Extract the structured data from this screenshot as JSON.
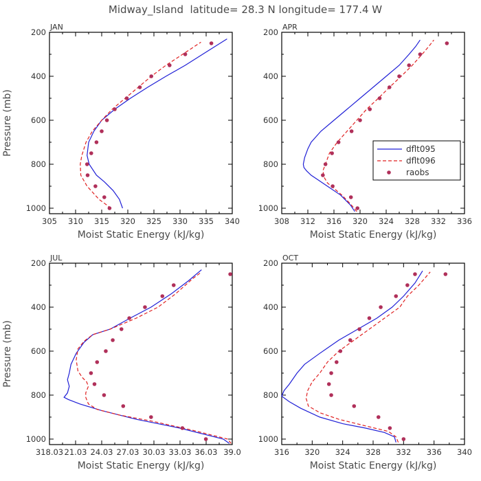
{
  "title": "Midway_Island  latitude= 28.3 N longitude= 177.4 W",
  "colors": {
    "dflt095": "#1f1fd6",
    "dflt096": "#e02020",
    "raobs": "#b0305a",
    "axis": "#000000"
  },
  "legend": [
    "dflt095",
    "dflt096",
    "raobs"
  ],
  "chart_data": [
    {
      "type": "line",
      "title": "JAN",
      "xlabel": "Moist Static Energy (kJ/kg)",
      "ylabel": "Pressure (mb)",
      "xlim": [
        305,
        340
      ],
      "ylim": [
        1025,
        200
      ],
      "xticks": [
        "305",
        "310",
        "315",
        "320",
        "325",
        "330",
        "335",
        "340"
      ],
      "xtickvals": [
        305,
        310,
        315,
        320,
        325,
        330,
        335,
        340
      ],
      "yticks": [
        200,
        400,
        600,
        800,
        1000
      ],
      "series": [
        {
          "name": "dflt095",
          "style": "solid",
          "points": [
            [
              319,
              1000
            ],
            [
              318.4,
              960
            ],
            [
              317.2,
              920
            ],
            [
              315.5,
              880
            ],
            [
              314,
              850
            ],
            [
              312.6,
              800
            ],
            [
              312.2,
              760
            ],
            [
              312.5,
              700
            ],
            [
              313.5,
              650
            ],
            [
              315,
              600
            ],
            [
              317.5,
              550
            ],
            [
              320.5,
              500
            ],
            [
              323.8,
              450
            ],
            [
              327.3,
              400
            ],
            [
              331,
              350
            ],
            [
              335,
              290
            ],
            [
              339,
              230
            ]
          ]
        },
        {
          "name": "dflt096",
          "style": "dashed",
          "points": [
            [
              316.8,
              1000
            ],
            [
              314.5,
              960
            ],
            [
              312.2,
              900
            ],
            [
              311,
              850
            ],
            [
              310.9,
              800
            ],
            [
              311.2,
              760
            ],
            [
              312,
              700
            ],
            [
              313.2,
              650
            ],
            [
              315,
              600
            ],
            [
              317,
              550
            ],
            [
              319.5,
              500
            ],
            [
              322,
              450
            ],
            [
              324.5,
              400
            ],
            [
              327.3,
              350
            ],
            [
              330.5,
              300
            ],
            [
              334,
              245
            ]
          ]
        },
        {
          "name": "raobs",
          "style": "dots",
          "points": [
            [
              316.5,
              1000
            ],
            [
              315.5,
              950
            ],
            [
              313.8,
              900
            ],
            [
              312.3,
              850
            ],
            [
              312.2,
              800
            ],
            [
              313,
              750
            ],
            [
              314,
              700
            ],
            [
              315,
              650
            ],
            [
              316,
              600
            ],
            [
              317.5,
              550
            ],
            [
              319.8,
              500
            ],
            [
              322.3,
              450
            ],
            [
              324.5,
              400
            ],
            [
              328,
              350
            ],
            [
              331,
              300
            ],
            [
              336,
              250
            ]
          ]
        }
      ]
    },
    {
      "type": "line",
      "title": "APR",
      "xlabel": "Moist Static Energy (kJ/kg)",
      "ylabel": "",
      "xlim": [
        308,
        336
      ],
      "ylim": [
        1025,
        200
      ],
      "xticks": [
        "308",
        "312",
        "316",
        "320",
        "324",
        "328",
        "332",
        "336"
      ],
      "xtickvals": [
        308,
        312,
        316,
        320,
        324,
        328,
        332,
        336
      ],
      "yticks": [
        200,
        400,
        600,
        800,
        1000
      ],
      "series": [
        {
          "name": "dflt095",
          "style": "solid",
          "points": [
            [
              319.2,
              1015
            ],
            [
              318.5,
              985
            ],
            [
              317,
              940
            ],
            [
              315,
              900
            ],
            [
              313.5,
              870
            ],
            [
              312.5,
              850
            ],
            [
              311.8,
              830
            ],
            [
              311.4,
              815
            ],
            [
              311.3,
              800
            ],
            [
              311.5,
              770
            ],
            [
              312,
              730
            ],
            [
              312.5,
              700
            ],
            [
              314,
              650
            ],
            [
              316,
              600
            ],
            [
              318,
              550
            ],
            [
              320,
              500
            ],
            [
              322,
              450
            ],
            [
              324,
              400
            ],
            [
              326,
              350
            ],
            [
              327.5,
              300
            ],
            [
              328.5,
              265
            ],
            [
              329.2,
              235
            ]
          ]
        },
        {
          "name": "dflt096",
          "style": "dashed",
          "points": [
            [
              319.5,
              1015
            ],
            [
              318.5,
              980
            ],
            [
              317.2,
              940
            ],
            [
              316,
              910
            ],
            [
              315,
              885
            ],
            [
              314.5,
              860
            ],
            [
              314.3,
              830
            ],
            [
              314.7,
              800
            ],
            [
              315.3,
              750
            ],
            [
              316.5,
              700
            ],
            [
              318,
              650
            ],
            [
              319.5,
              600
            ],
            [
              321,
              550
            ],
            [
              322.8,
              500
            ],
            [
              324.5,
              450
            ],
            [
              326.3,
              400
            ],
            [
              328,
              350
            ],
            [
              329.5,
              300
            ],
            [
              330.5,
              265
            ],
            [
              331.3,
              235
            ]
          ]
        },
        {
          "name": "raobs",
          "style": "dots",
          "points": [
            [
              319.6,
              1000
            ],
            [
              318.6,
              950
            ],
            [
              315.8,
              900
            ],
            [
              314.3,
              850
            ],
            [
              314.7,
              800
            ],
            [
              315.7,
              750
            ],
            [
              316.7,
              700
            ],
            [
              318.7,
              650
            ],
            [
              320,
              600
            ],
            [
              321.5,
              550
            ],
            [
              323,
              500
            ],
            [
              324.5,
              450
            ],
            [
              326,
              400
            ],
            [
              327.5,
              350
            ],
            [
              329.2,
              300
            ],
            [
              333.3,
              250
            ]
          ]
        }
      ]
    },
    {
      "type": "line",
      "title": "JUL",
      "xlabel": "Moist Static Energy (kJ/kg)",
      "ylabel": "Pressure (mb)",
      "xlim": [
        318.03,
        339.03
      ],
      "ylim": [
        1025,
        200
      ],
      "xticks": [
        "318.03",
        "21.03",
        "24.03",
        "27.03",
        "30.03",
        "33.03",
        "36.03",
        "39.0"
      ],
      "xtickvals": [
        318.03,
        321.03,
        324.03,
        327.03,
        330.03,
        333.03,
        336.03,
        339.03
      ],
      "yticks": [
        200,
        400,
        600,
        800,
        1000
      ],
      "series": [
        {
          "name": "dflt095",
          "style": "solid",
          "points": [
            [
              338.7,
              1020
            ],
            [
              338,
              1000
            ],
            [
              333,
              950
            ],
            [
              328,
              910
            ],
            [
              324,
              870
            ],
            [
              321.5,
              840
            ],
            [
              320.2,
              820
            ],
            [
              319.7,
              810
            ],
            [
              320.1,
              790
            ],
            [
              320.3,
              760
            ],
            [
              320.1,
              730
            ],
            [
              320.3,
              700
            ],
            [
              320.5,
              660
            ],
            [
              321.1,
              610
            ],
            [
              322,
              560
            ],
            [
              323,
              525
            ],
            [
              325,
              500
            ],
            [
              327.3,
              450
            ],
            [
              329.7,
              400
            ],
            [
              332,
              340
            ],
            [
              334,
              280
            ],
            [
              335.5,
              230
            ]
          ]
        },
        {
          "name": "dflt096",
          "style": "dashed",
          "points": [
            [
              338.9,
              1020
            ],
            [
              338.5,
              1000
            ],
            [
              334.5,
              960
            ],
            [
              330,
              920
            ],
            [
              326,
              890
            ],
            [
              323.5,
              865
            ],
            [
              322.5,
              840
            ],
            [
              322.2,
              810
            ],
            [
              322.2,
              790
            ],
            [
              322.5,
              760
            ],
            [
              322.3,
              740
            ],
            [
              321.8,
              720
            ],
            [
              321.3,
              690
            ],
            [
              321.1,
              640
            ],
            [
              321.3,
              590
            ],
            [
              322,
              555
            ],
            [
              323,
              525
            ],
            [
              325,
              500
            ],
            [
              328,
              450
            ],
            [
              330.5,
              400
            ],
            [
              332.5,
              340
            ],
            [
              334.5,
              270
            ],
            [
              335.5,
              240
            ]
          ]
        },
        {
          "name": "raobs",
          "style": "dots",
          "points": [
            [
              336,
              1000
            ],
            [
              333.3,
              950
            ],
            [
              329.7,
              900
            ],
            [
              326.5,
              850
            ],
            [
              324.3,
              800
            ],
            [
              323.2,
              750
            ],
            [
              322.8,
              700
            ],
            [
              323.5,
              650
            ],
            [
              324.5,
              600
            ],
            [
              325.3,
              550
            ],
            [
              326.3,
              500
            ],
            [
              327.2,
              450
            ],
            [
              329,
              400
            ],
            [
              331,
              350
            ],
            [
              332.3,
              300
            ],
            [
              338.8,
              250
            ]
          ]
        }
      ]
    },
    {
      "type": "line",
      "title": "OCT",
      "xlabel": "Moist Static Energy (kJ/kg)",
      "ylabel": "",
      "xlim": [
        316,
        340
      ],
      "ylim": [
        1025,
        200
      ],
      "xticks": [
        "316",
        "320",
        "324",
        "328",
        "332",
        "336",
        "340"
      ],
      "xtickvals": [
        316,
        320,
        324,
        328,
        332,
        336,
        340
      ],
      "yticks": [
        200,
        400,
        600,
        800,
        1000
      ],
      "series": [
        {
          "name": "dflt095",
          "style": "solid",
          "points": [
            [
              331,
              1015
            ],
            [
              330.8,
              990
            ],
            [
              329.5,
              970
            ],
            [
              327,
              950
            ],
            [
              324,
              930
            ],
            [
              321,
              900
            ],
            [
              318.5,
              860
            ],
            [
              317,
              830
            ],
            [
              316,
              805
            ],
            [
              316.3,
              780
            ],
            [
              317,
              750
            ],
            [
              318,
              700
            ],
            [
              319,
              660
            ],
            [
              321,
              610
            ],
            [
              323.5,
              550
            ],
            [
              326,
              500
            ],
            [
              328.5,
              450
            ],
            [
              330.5,
              400
            ],
            [
              332,
              350
            ],
            [
              333.5,
              290
            ],
            [
              334.5,
              235
            ]
          ]
        },
        {
          "name": "dflt096",
          "style": "dashed",
          "points": [
            [
              331.3,
              1015
            ],
            [
              331,
              990
            ],
            [
              330,
              965
            ],
            [
              327,
              940
            ],
            [
              323.5,
              910
            ],
            [
              321,
              880
            ],
            [
              319.5,
              850
            ],
            [
              319.2,
              815
            ],
            [
              319.4,
              780
            ],
            [
              320,
              740
            ],
            [
              321,
              700
            ],
            [
              322,
              650
            ],
            [
              323.5,
              600
            ],
            [
              325.5,
              550
            ],
            [
              327.5,
              500
            ],
            [
              329.5,
              450
            ],
            [
              331.5,
              400
            ],
            [
              332.5,
              350
            ],
            [
              334,
              300
            ],
            [
              335.5,
              240
            ]
          ]
        },
        {
          "name": "raobs",
          "style": "dots",
          "points": [
            [
              332,
              1000
            ],
            [
              330.2,
              950
            ],
            [
              328.7,
              900
            ],
            [
              325.5,
              850
            ],
            [
              322.5,
              800
            ],
            [
              322.2,
              750
            ],
            [
              322.5,
              700
            ],
            [
              323.2,
              650
            ],
            [
              323.7,
              600
            ],
            [
              325,
              550
            ],
            [
              326.2,
              500
            ],
            [
              327.5,
              450
            ],
            [
              329,
              400
            ],
            [
              331,
              350
            ],
            [
              332.5,
              300
            ],
            [
              333.5,
              250
            ],
            [
              337.5,
              250
            ]
          ]
        }
      ]
    }
  ]
}
